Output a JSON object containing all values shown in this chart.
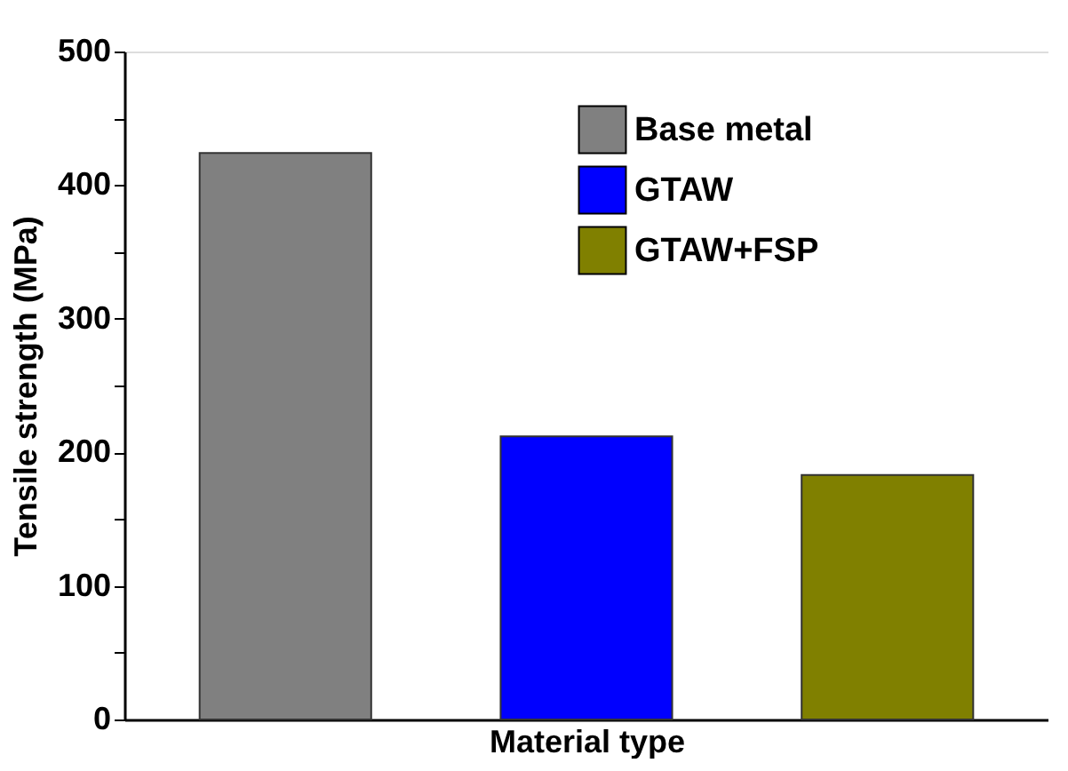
{
  "chart_data": {
    "type": "bar",
    "xlabel": "Material type",
    "ylabel": "Tensile strength (MPa)",
    "categories": [
      null,
      null,
      null
    ],
    "series": [
      {
        "name": "Base metal",
        "color": "#808080",
        "values": [
          424,
          null,
          null
        ]
      },
      {
        "name": "GTAW",
        "color": "#0000ff",
        "values": [
          null,
          212,
          null
        ]
      },
      {
        "name": "GTAW+FSP",
        "color": "#808000",
        "values": [
          null,
          null,
          183
        ]
      }
    ],
    "ylim": [
      0,
      500
    ],
    "yticks": [
      0,
      {
        "value": 50,
        "label": null
      },
      100,
      {
        "value": 150,
        "label": null
      },
      200,
      {
        "value": 250,
        "label": null
      },
      300,
      {
        "value": 350,
        "label": null
      },
      400,
      {
        "value": 450,
        "label": null
      },
      500
    ],
    "tick_labels": "y",
    "grid": false,
    "legend": "top right"
  }
}
